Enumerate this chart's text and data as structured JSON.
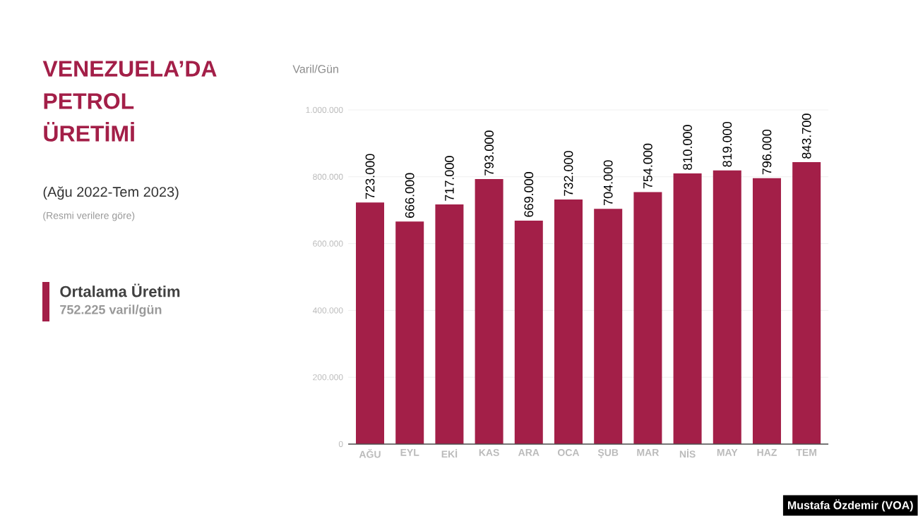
{
  "chart_data": {
    "type": "bar",
    "title": "VENEZUELA’DA PETROL ÜRETİMİ",
    "subtitle": "(Ağu 2022-Tem 2023)",
    "ylabel": "Varil/Gün",
    "annotations": [
      "(Resmi verilere göre)",
      "Ortalama Üretim",
      "752.225 varil/gün",
      "Mustafa Özdemir (VOA)"
    ],
    "categories": [
      "AĞU",
      "EYL",
      "EKİ",
      "KAS",
      "ARA",
      "OCA",
      "ŞUB",
      "MAR",
      "NİS",
      "MAY",
      "HAZ",
      "TEM"
    ],
    "values": [
      723000,
      666000,
      717000,
      793000,
      669000,
      732000,
      704000,
      754000,
      810000,
      819000,
      796000,
      843700
    ],
    "value_labels": [
      "723.000",
      "666.000",
      "717.000",
      "793.000",
      "669.000",
      "732.000",
      "704.000",
      "754.000",
      "810.000",
      "819.000",
      "796.000",
      "843.700"
    ],
    "color": "#a31f48",
    "ylim": [
      0,
      1000000
    ],
    "yticks": [
      0,
      {
        "value": 200000,
        "label": "200.000"
      },
      {
        "value": 400000,
        "label": "400.000"
      },
      {
        "value": 600000,
        "label": "600.000"
      },
      {
        "value": 800000,
        "label": "800.000"
      },
      {
        "value": 1000000,
        "label": "1.000.000"
      }
    ],
    "grid": "y"
  }
}
